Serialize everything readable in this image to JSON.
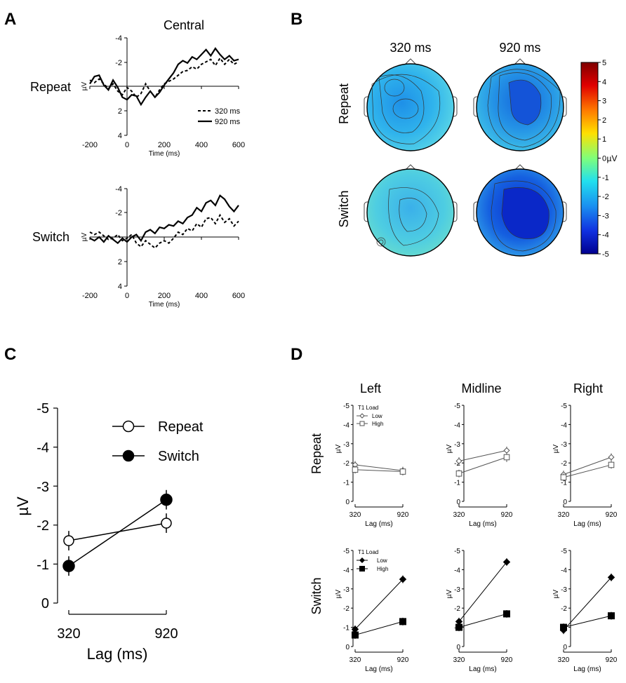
{
  "panels": {
    "a": "A",
    "b": "B",
    "c": "C",
    "d": "D"
  },
  "panel_a": {
    "title": "Central",
    "y_unit": "µV",
    "y_ticks": [
      "-4",
      "-2",
      "2",
      "4"
    ],
    "x_ticks": [
      "-200",
      "0",
      "200",
      "400",
      "600"
    ],
    "xlabel": "Time (ms)",
    "legend": [
      "320 ms",
      "920 ms"
    ],
    "rows": [
      "Repeat",
      "Switch"
    ]
  },
  "panel_b": {
    "columns": [
      "320 ms",
      "920 ms"
    ],
    "rows": [
      "Repeat",
      "Switch"
    ],
    "colorbar_ticks": [
      "5",
      "4",
      "3",
      "2",
      "1",
      "0",
      "-1",
      "-2",
      "-3",
      "-4",
      "-5"
    ],
    "colorbar_unit": "µV",
    "map_mean_uV": [
      [
        -1.8,
        -2.9
      ],
      [
        -1.2,
        -4.0
      ]
    ]
  },
  "panel_c": {
    "ylabel": "µV",
    "xlabel": "Lag (ms)",
    "y_ticks": [
      "-5",
      "-4",
      "-3",
      "-2",
      "-1",
      "0"
    ],
    "x_ticks": [
      "320",
      "920"
    ],
    "legend": [
      "Repeat",
      "Switch"
    ]
  },
  "panel_d": {
    "columns": [
      "Left",
      "Midline",
      "Right"
    ],
    "rows": [
      "Repeat",
      "Switch"
    ],
    "legend_title": "T1 Load",
    "legend": [
      "Low",
      "High"
    ],
    "ylabel": "µV",
    "xlabel": "Lag (ms)",
    "y_ticks": [
      "-5",
      "-4",
      "-3",
      "-2",
      "-1",
      "0"
    ],
    "x_ticks": [
      "320",
      "920"
    ]
  },
  "chart_data": [
    {
      "type": "line",
      "panel": "A",
      "title": "Central",
      "row": "Repeat",
      "xlabel": "Time (ms)",
      "ylabel": "µV",
      "xlim": [
        -200,
        600
      ],
      "ylim": [
        -4,
        4
      ],
      "y_inverted": true,
      "x": [
        -200,
        -175,
        -150,
        -125,
        -100,
        -75,
        -50,
        -25,
        0,
        25,
        50,
        75,
        100,
        125,
        150,
        175,
        200,
        225,
        250,
        275,
        300,
        325,
        350,
        375,
        400,
        425,
        450,
        475,
        500,
        525,
        550,
        575,
        600
      ],
      "series": [
        {
          "name": "320 ms",
          "dash": "dashed",
          "values": [
            -0.5,
            -0.3,
            -0.6,
            -0.2,
            0.2,
            -0.2,
            0.4,
            0.7,
            0.1,
            0.4,
            0.9,
            0.6,
            -0.2,
            0.4,
            0.9,
            0.3,
            -0.2,
            -0.4,
            -0.6,
            -0.9,
            -1.2,
            -1.3,
            -1.6,
            -1.4,
            -1.8,
            -2.0,
            -2.2,
            -1.7,
            -2.3,
            -1.8,
            -2.2,
            -1.8,
            -2.0
          ]
        },
        {
          "name": "920 ms",
          "dash": "solid",
          "values": [
            -0.2,
            -0.8,
            -0.9,
            -0.1,
            0.3,
            -0.5,
            0.1,
            0.9,
            1.1,
            0.7,
            0.8,
            1.5,
            0.9,
            0.4,
            0.9,
            0.5,
            -0.1,
            -0.6,
            -1.1,
            -1.8,
            -2.1,
            -1.9,
            -2.4,
            -2.2,
            -2.6,
            -3.0,
            -2.5,
            -3.1,
            -2.6,
            -2.2,
            -2.5,
            -2.1,
            -2.2
          ]
        }
      ]
    },
    {
      "type": "line",
      "panel": "A",
      "row": "Switch",
      "xlabel": "Time (ms)",
      "ylabel": "µV",
      "xlim": [
        -200,
        600
      ],
      "ylim": [
        -4,
        4
      ],
      "y_inverted": true,
      "x": [
        -200,
        -175,
        -150,
        -125,
        -100,
        -75,
        -50,
        -25,
        0,
        25,
        50,
        75,
        100,
        125,
        150,
        175,
        200,
        225,
        250,
        275,
        300,
        325,
        350,
        375,
        400,
        425,
        450,
        475,
        500,
        525,
        550,
        575,
        600
      ],
      "series": [
        {
          "name": "320 ms",
          "dash": "dashed",
          "values": [
            -0.4,
            -0.2,
            -0.4,
            -0.1,
            0.2,
            0.1,
            -0.2,
            0.3,
            0.1,
            -0.2,
            0.5,
            0.8,
            0.3,
            0.6,
            0.9,
            0.5,
            0.3,
            0.5,
            0.1,
            -0.4,
            -0.2,
            -0.7,
            -0.5,
            -1.1,
            -0.8,
            -1.5,
            -1.6,
            -1.1,
            -1.8,
            -1.2,
            -1.5,
            -0.9,
            -1.3
          ]
        },
        {
          "name": "920 ms",
          "dash": "solid",
          "values": [
            0.1,
            0.3,
            0.0,
            0.4,
            -0.1,
            0.2,
            0.5,
            0.1,
            0.4,
            0.0,
            -0.2,
            0.3,
            -0.4,
            -0.6,
            -0.3,
            -0.8,
            -0.7,
            -1.0,
            -0.9,
            -1.3,
            -1.1,
            -1.6,
            -1.8,
            -2.4,
            -2.1,
            -2.8,
            -3.0,
            -2.6,
            -3.4,
            -3.1,
            -2.5,
            -2.1,
            -2.6
          ]
        }
      ]
    },
    {
      "type": "line",
      "panel": "C",
      "xlabel": "Lag (ms)",
      "ylabel": "µV",
      "categories": [
        "320",
        "920"
      ],
      "ylim": [
        0,
        -5
      ],
      "y_inverted": true,
      "series": [
        {
          "name": "Repeat",
          "marker": "open-circle",
          "values": [
            -1.6,
            -2.05
          ],
          "err": [
            0.25,
            0.25
          ]
        },
        {
          "name": "Switch",
          "marker": "filled-circle",
          "values": [
            -0.95,
            -2.65
          ],
          "err": [
            0.25,
            0.25
          ]
        }
      ]
    },
    {
      "type": "line",
      "panel": "D",
      "row": "Repeat",
      "xlabel": "Lag (ms)",
      "ylabel": "µV",
      "categories": [
        "320",
        "920"
      ],
      "ylim": [
        0,
        -5
      ],
      "y_inverted": true,
      "subplots": [
        {
          "name": "Left",
          "series": [
            {
              "name": "Low",
              "marker": "open-diamond",
              "values": [
                -1.9,
                -1.6
              ],
              "err": [
                0.2,
                0.2
              ]
            },
            {
              "name": "High",
              "marker": "open-square",
              "values": [
                -1.65,
                -1.55
              ],
              "err": [
                0.2,
                0.2
              ]
            }
          ]
        },
        {
          "name": "Midline",
          "series": [
            {
              "name": "Low",
              "marker": "open-diamond",
              "values": [
                -2.1,
                -2.65
              ],
              "err": [
                0.2,
                0.2
              ]
            },
            {
              "name": "High",
              "marker": "open-square",
              "values": [
                -1.45,
                -2.3
              ],
              "err": [
                0.2,
                0.25
              ]
            }
          ]
        },
        {
          "name": "Right",
          "series": [
            {
              "name": "Low",
              "marker": "open-diamond",
              "values": [
                -1.4,
                -2.3
              ],
              "err": [
                0.2,
                0.2
              ]
            },
            {
              "name": "High",
              "marker": "open-square",
              "values": [
                -1.25,
                -1.9
              ],
              "err": [
                0.2,
                0.2
              ]
            }
          ]
        }
      ]
    },
    {
      "type": "line",
      "panel": "D",
      "row": "Switch",
      "xlabel": "Lag (ms)",
      "ylabel": "µV",
      "categories": [
        "320",
        "920"
      ],
      "ylim": [
        0,
        -5
      ],
      "y_inverted": true,
      "subplots": [
        {
          "name": "Left",
          "series": [
            {
              "name": "Low",
              "marker": "filled-diamond",
              "values": [
                -0.9,
                -3.5
              ],
              "err": [
                0.2,
                0.2
              ]
            },
            {
              "name": "High",
              "marker": "filled-square",
              "values": [
                -0.6,
                -1.3
              ],
              "err": [
                0.2,
                0.2
              ]
            }
          ]
        },
        {
          "name": "Midline",
          "series": [
            {
              "name": "Low",
              "marker": "filled-diamond",
              "values": [
                -1.3,
                -4.4
              ],
              "err": [
                0.2,
                0.2
              ]
            },
            {
              "name": "High",
              "marker": "filled-square",
              "values": [
                -1.0,
                -1.7
              ],
              "err": [
                0.2,
                0.2
              ]
            }
          ]
        },
        {
          "name": "Right",
          "series": [
            {
              "name": "Low",
              "marker": "filled-diamond",
              "values": [
                -0.85,
                -3.6
              ],
              "err": [
                0.2,
                0.2
              ]
            },
            {
              "name": "High",
              "marker": "filled-square",
              "values": [
                -1.0,
                -1.6
              ],
              "err": [
                0.2,
                0.2
              ]
            }
          ]
        }
      ]
    }
  ]
}
